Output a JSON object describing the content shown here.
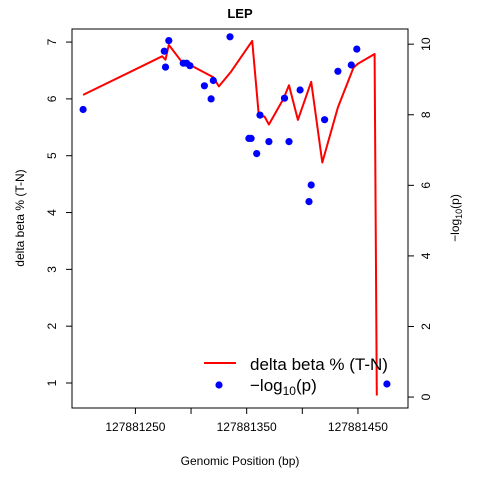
{
  "chart_data": {
    "type": "line+scatter",
    "title": "LEP",
    "xlabel": "Genomic Position (bp)",
    "ylabel": "delta beta % (T-N)",
    "y2label_prefix": "−log",
    "y2label_sub": "10",
    "y2label_suffix": "(p)",
    "xlim": [
      127881193,
      127881495
    ],
    "ylim": [
      0.56,
      7.23
    ],
    "y2lim": [
      -0.31,
      10.43
    ],
    "x_ticks": [
      127881250,
      127881300,
      127881350,
      127881400,
      127881450
    ],
    "x_tick_labels": [
      "127881250",
      "",
      "127881350",
      "",
      "127881450"
    ],
    "y_ticks": [
      1,
      2,
      3,
      4,
      5,
      6,
      7
    ],
    "y_tick_labels": [
      "1",
      "2",
      "3",
      "4",
      "5",
      "6",
      "7"
    ],
    "y2_ticks": [
      0,
      2,
      4,
      6,
      8,
      10
    ],
    "y2_tick_labels": [
      "0",
      "2",
      "4",
      "6",
      "8",
      "10"
    ],
    "grid": false,
    "legend_position": "bottom-right",
    "legend": {
      "line_label": "delta beta % (T-N)",
      "point_prefix": "−log",
      "point_sub": "10",
      "point_suffix": "(p)"
    },
    "series": [
      {
        "name": "delta beta % (T-N)",
        "kind": "line",
        "axis": "left",
        "color": "#ff0000",
        "x": [
          127881203,
          127881274,
          127881277,
          127881280,
          127881291,
          127881296,
          127881320,
          127881325,
          127881336,
          127881355,
          127881361,
          127881366,
          127881370,
          127881383,
          127881388,
          127881396,
          127881408,
          127881418,
          127881432,
          127881446,
          127881450,
          127881465,
          127881467
        ],
        "y": [
          6.07,
          6.75,
          6.69,
          6.95,
          6.67,
          6.63,
          6.38,
          6.22,
          6.48,
          7.02,
          5.69,
          5.69,
          5.55,
          6.0,
          6.24,
          5.63,
          6.3,
          4.88,
          5.85,
          6.55,
          6.62,
          6.79,
          0.78
        ]
      },
      {
        "name": "−log10(p)",
        "kind": "scatter",
        "axis": "right",
        "color": "#0000ff",
        "x": [
          127881203,
          127881276,
          127881277,
          127881280,
          127881293,
          127881296,
          127881299,
          127881312,
          127881318,
          127881320,
          127881335,
          127881352,
          127881354,
          127881359,
          127881362,
          127881370,
          127881384,
          127881388,
          127881398,
          127881406,
          127881408,
          127881420,
          127881432,
          127881444,
          127881449,
          127881476
        ],
        "y": [
          8.15,
          9.8,
          9.35,
          10.1,
          9.46,
          9.46,
          9.39,
          8.82,
          8.45,
          8.97,
          10.21,
          7.33,
          7.33,
          6.9,
          7.99,
          7.24,
          8.47,
          7.24,
          8.7,
          5.54,
          6.01,
          7.86,
          9.23,
          9.41,
          9.86,
          0.37
        ]
      }
    ]
  }
}
